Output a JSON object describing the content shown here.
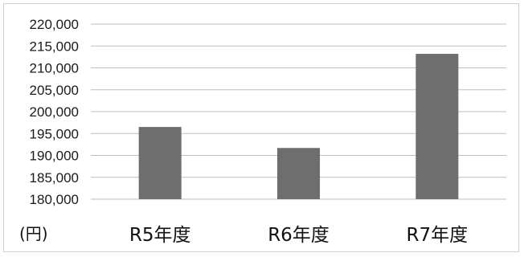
{
  "chart_data": {
    "type": "bar",
    "title": "",
    "xlabel": "",
    "ylabel": "(円)",
    "categories": [
      "R5年度",
      "R6年度",
      "R7年度"
    ],
    "values": [
      196500,
      191700,
      213200
    ],
    "ylim": [
      180000,
      220000
    ],
    "yticks": [
      180000,
      185000,
      190000,
      195000,
      200000,
      205000,
      210000,
      215000,
      220000
    ],
    "ytick_labels": [
      "180,000",
      "185,000",
      "190,000",
      "195,000",
      "200,000",
      "205,000",
      "210,000",
      "215,000",
      "220,000"
    ],
    "grid": true,
    "legend": "none",
    "colors": {
      "bar": "#6e6e6e",
      "grid": "#bdbdbd"
    }
  }
}
